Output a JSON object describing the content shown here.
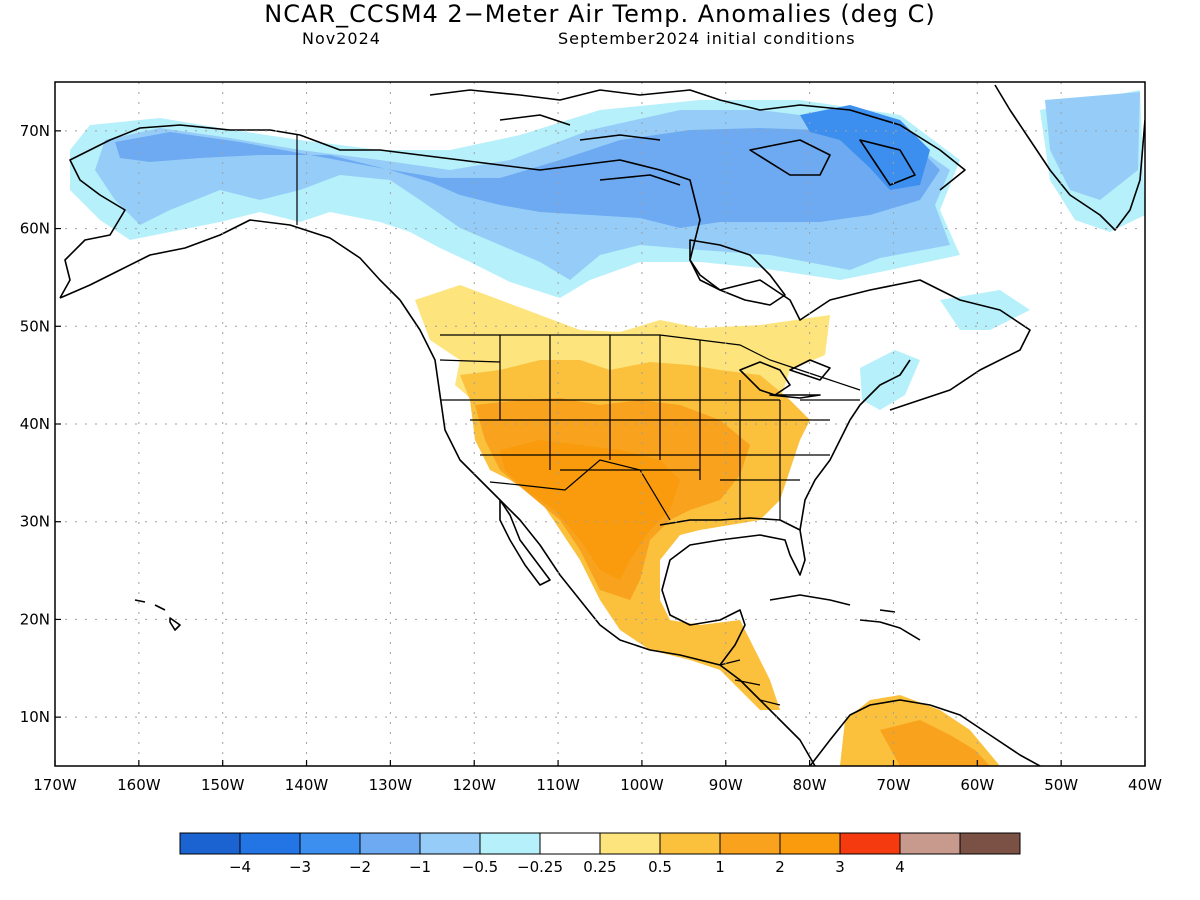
{
  "header": {
    "title": "NCAR_CCSM4 2−Meter Air Temp. Anomalies (deg C)",
    "target_month": "Nov2024",
    "initial_conditions": "September2024 initial conditions"
  },
  "map": {
    "lon_range": [
      -170,
      -40
    ],
    "lat_range": [
      5,
      75
    ],
    "lon_ticks": [
      {
        "value": -170,
        "label": "170W"
      },
      {
        "value": -160,
        "label": "160W"
      },
      {
        "value": -150,
        "label": "150W"
      },
      {
        "value": -140,
        "label": "140W"
      },
      {
        "value": -130,
        "label": "130W"
      },
      {
        "value": -120,
        "label": "120W"
      },
      {
        "value": -110,
        "label": "110W"
      },
      {
        "value": -100,
        "label": "100W"
      },
      {
        "value": -90,
        "label": "90W"
      },
      {
        "value": -80,
        "label": "80W"
      },
      {
        "value": -70,
        "label": "70W"
      },
      {
        "value": -60,
        "label": "60W"
      },
      {
        "value": -50,
        "label": "50W"
      },
      {
        "value": -40,
        "label": "40W"
      }
    ],
    "lat_ticks": [
      {
        "value": 70,
        "label": "70N"
      },
      {
        "value": 60,
        "label": "60N"
      },
      {
        "value": 50,
        "label": "50N"
      },
      {
        "value": 40,
        "label": "40N"
      },
      {
        "value": 30,
        "label": "30N"
      },
      {
        "value": 20,
        "label": "20N"
      },
      {
        "value": 10,
        "label": "10N"
      }
    ],
    "grid": true
  },
  "colorbar": {
    "colors": [
      "#1a63d1",
      "#2375e6",
      "#3d8fef",
      "#6eaaf2",
      "#96cdf8",
      "#b6f0fb",
      "#ffffff",
      "#fde47c",
      "#fbc13d",
      "#f8a21d",
      "#f99b0c",
      "#f53a0f",
      "#c89a8e",
      "#7a5144"
    ],
    "labels": [
      "−4",
      "−3",
      "−2",
      "−1",
      "−0.5",
      "−0.25",
      "0.25",
      "0.5",
      "1",
      "2",
      "3",
      "4"
    ]
  },
  "colors": {
    "cold_strong": "#3d8fef",
    "cold_mid": "#6eaaf2",
    "cold_light": "#96cdf8",
    "cold_faint": "#b6f0fb",
    "warm_faint": "#fde47c",
    "warm_light": "#fbc13d",
    "warm_mid": "#f8a21d",
    "warm_strong": "#f99b0c",
    "land_outline": "#000000",
    "grid": "#a0a0a0"
  }
}
